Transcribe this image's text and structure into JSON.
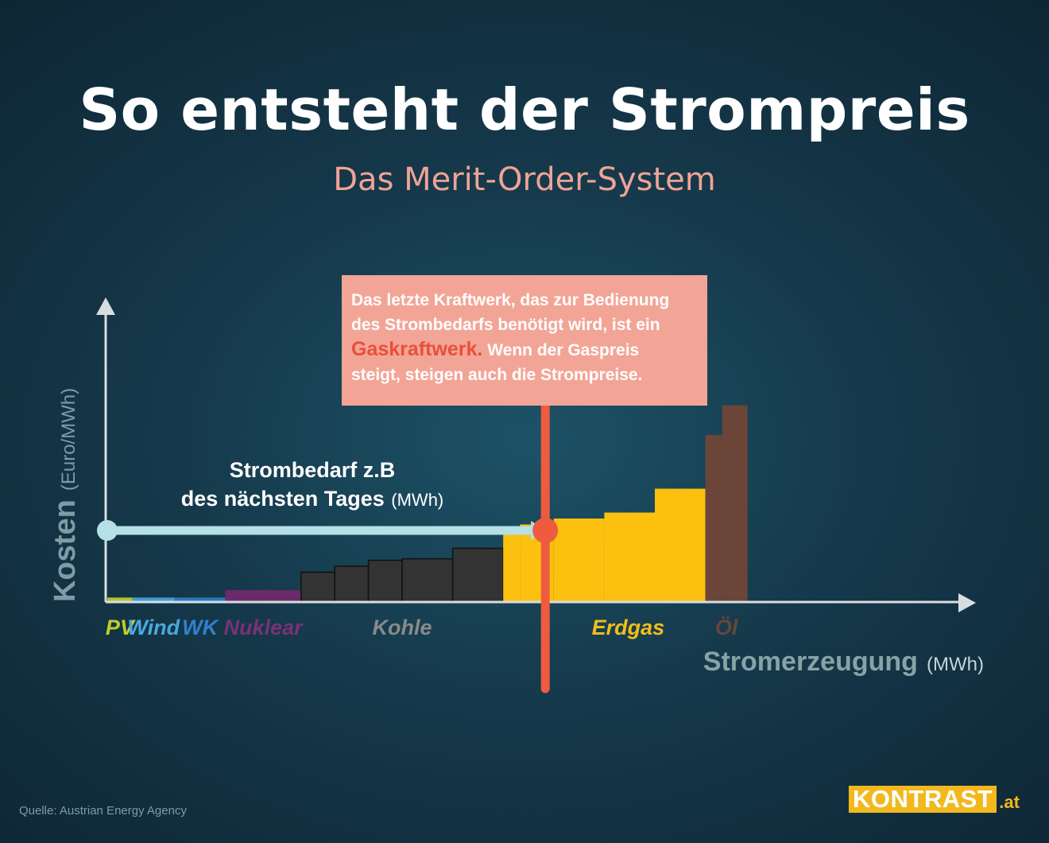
{
  "title": "So entsteht der Strompreis",
  "subtitle": "Das Merit-Order-System",
  "callout": {
    "line1": "Das letzte Kraftwerk, das zur Bedienung",
    "line2": "des Strombedarfs benötigt wird, ist ein",
    "highlight": "Gaskraftwerk.",
    "line3": " Wenn der Gaspreis",
    "line4": "steigt, steigen auch die Strompreise."
  },
  "source": "Quelle: Austrian Energy Agency",
  "logo": {
    "main": "KONTRAST",
    "tld": ".at"
  },
  "chart_data": {
    "type": "bar",
    "title": "So entsteht der Strompreis",
    "subtitle": "Das Merit-Order-System",
    "ylabel": "Kosten",
    "ylabel_unit": "(Euro/MWh)",
    "xlabel": "Stromerzeugung",
    "xlabel_unit": "(MWh)",
    "x_range": [
      0,
      100
    ],
    "y_range": [
      0,
      100
    ],
    "demand": {
      "label_line1": "Strombedarf z.B",
      "label_line2": "des nächsten Tages",
      "label_unit": "(MWh)",
      "x": 52,
      "y": 24
    },
    "series": [
      {
        "name": "PV",
        "color": "#b8c22a",
        "text_color": "#c3cc2e",
        "blocks": [
          {
            "x0": 0,
            "x1": 3,
            "y": 1.5
          }
        ]
      },
      {
        "name": "Wind",
        "color": "#3f9fd8",
        "text_color": "#4aa8e0",
        "blocks": [
          {
            "x0": 3,
            "x1": 8,
            "y": 1.5
          }
        ]
      },
      {
        "name": "WK",
        "color": "#2a78bf",
        "text_color": "#2f82cc",
        "blocks": [
          {
            "x0": 8,
            "x1": 14,
            "y": 1.5
          }
        ]
      },
      {
        "name": "Nuklear",
        "color": "#6b2a6a",
        "text_color": "#7a3176",
        "blocks": [
          {
            "x0": 14,
            "x1": 23,
            "y": 4
          }
        ]
      },
      {
        "name": "Kohle",
        "color": "#333333",
        "text_color": "#8a8a8a",
        "blocks": [
          {
            "x0": 23,
            "x1": 27,
            "y": 10
          },
          {
            "x0": 27,
            "x1": 31,
            "y": 12
          },
          {
            "x0": 31,
            "x1": 35,
            "y": 14
          },
          {
            "x0": 35,
            "x1": 41,
            "y": 14.5
          },
          {
            "x0": 41,
            "x1": 47,
            "y": 18
          }
        ]
      },
      {
        "name": "Erdgas",
        "color": "#fcc10f",
        "text_color": "#f4bd18",
        "blocks": [
          {
            "x0": 47,
            "x1": 49,
            "y": 24
          },
          {
            "x0": 49,
            "x1": 53,
            "y": 26
          },
          {
            "x0": 53,
            "x1": 59,
            "y": 28
          },
          {
            "x0": 59,
            "x1": 65,
            "y": 30
          },
          {
            "x0": 65,
            "x1": 71,
            "y": 38
          }
        ]
      },
      {
        "name": "Öl",
        "color": "#6b4538",
        "text_color": "#6b4538",
        "blocks": [
          {
            "x0": 71,
            "x1": 73,
            "y": 56
          },
          {
            "x0": 73,
            "x1": 76,
            "y": 66
          }
        ]
      }
    ]
  }
}
